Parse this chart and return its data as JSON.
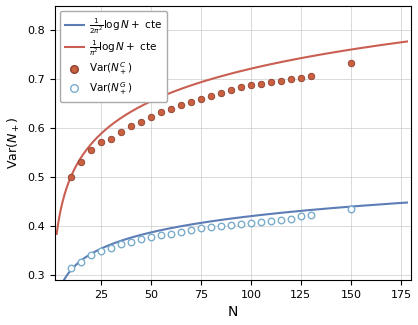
{
  "title": "",
  "xlabel": "N",
  "ylabel": "Var$(N_+)$",
  "xlim": [
    2,
    180
  ],
  "ylim": [
    0.29,
    0.85
  ],
  "xticks": [
    25,
    50,
    75,
    100,
    125,
    150,
    175
  ],
  "yticks": [
    0.3,
    0.4,
    0.5,
    0.6,
    0.7,
    0.8
  ],
  "line_blue_color": "#5c7db5",
  "line_red_color": "#c95f53",
  "dot_red_color": "#c96040",
  "dot_blue_color": "#7aadcc",
  "dot_edge_red": "#8b4030",
  "dot_edge_blue": "#4a7a99",
  "legend_blue_label": "$\\frac{1}{2\\pi^2}\\log N+ $ cte",
  "legend_red_label": "$\\frac{1}{\\pi^2}\\log N+ $ cte",
  "legend_red_dot_label": "Var$(N_+^C)$",
  "legend_blue_dot_label": "Var$(N_+^G)$",
  "cauchy_N": [
    10,
    15,
    20,
    25,
    30,
    35,
    40,
    45,
    50,
    55,
    60,
    65,
    70,
    75,
    80,
    85,
    90,
    95,
    100,
    105,
    110,
    115,
    120,
    125,
    130,
    150
  ],
  "cauchy_var": [
    0.501,
    0.53,
    0.555,
    0.572,
    0.578,
    0.592,
    0.605,
    0.613,
    0.622,
    0.633,
    0.639,
    0.648,
    0.654,
    0.66,
    0.665,
    0.672,
    0.678,
    0.683,
    0.687,
    0.691,
    0.694,
    0.697,
    0.7,
    0.702,
    0.706,
    0.733
  ],
  "gaussian_N": [
    10,
    15,
    20,
    25,
    30,
    35,
    40,
    45,
    50,
    55,
    60,
    65,
    70,
    75,
    80,
    85,
    90,
    95,
    100,
    105,
    110,
    115,
    120,
    125,
    130,
    150
  ],
  "gaussian_var": [
    0.315,
    0.328,
    0.342,
    0.35,
    0.356,
    0.364,
    0.368,
    0.373,
    0.378,
    0.382,
    0.385,
    0.389,
    0.393,
    0.396,
    0.399,
    0.401,
    0.403,
    0.405,
    0.407,
    0.409,
    0.411,
    0.413,
    0.415,
    0.42,
    0.422,
    0.436
  ],
  "blue_line_slope": 0.1106,
  "blue_line_intercept": 0.1994,
  "red_line_slope": 0.2213,
  "red_line_intercept": 0.2787
}
